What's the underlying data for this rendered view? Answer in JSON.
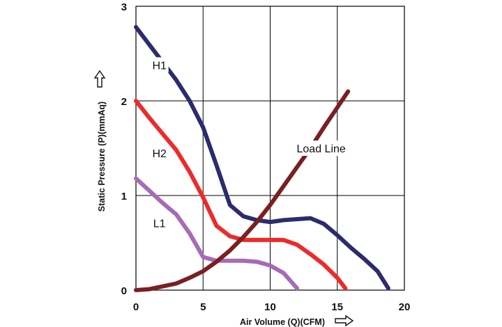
{
  "chart_data": {
    "type": "line",
    "xlabel": "Air Volume (Q)(CFM)",
    "ylabel": "Static Pressure (P)(mmAq)",
    "xlim": [
      0,
      20
    ],
    "ylim": [
      0,
      3
    ],
    "x_ticks": [
      "0",
      "5",
      "10",
      "15",
      "20"
    ],
    "y_ticks": [
      "0",
      "1",
      "2",
      "3"
    ],
    "grid": true,
    "series": [
      {
        "name": "H1",
        "color": "#2b2b6e",
        "x": [
          0,
          1.5,
          3,
          4,
          5,
          6,
          7,
          8,
          9,
          10,
          11,
          12,
          13,
          14,
          15,
          16,
          17,
          18,
          18.8
        ],
        "y": [
          2.78,
          2.5,
          2.22,
          2.0,
          1.72,
          1.32,
          0.9,
          0.78,
          0.74,
          0.72,
          0.74,
          0.75,
          0.76,
          0.7,
          0.58,
          0.45,
          0.33,
          0.2,
          0.02
        ]
      },
      {
        "name": "H2",
        "color": "#ee2a2a",
        "x": [
          0,
          1,
          2,
          3,
          4,
          5,
          6,
          7,
          8,
          9,
          10,
          11,
          12,
          13,
          14,
          15,
          15.6
        ],
        "y": [
          2.0,
          1.82,
          1.65,
          1.48,
          1.25,
          0.98,
          0.68,
          0.57,
          0.53,
          0.53,
          0.53,
          0.53,
          0.48,
          0.38,
          0.27,
          0.13,
          0.02
        ]
      },
      {
        "name": "L1",
        "color": "#a86ab8",
        "x": [
          0,
          1,
          2,
          3,
          4,
          5,
          6,
          7,
          8,
          9,
          10,
          11,
          12
        ],
        "y": [
          1.18,
          1.05,
          0.92,
          0.8,
          0.6,
          0.35,
          0.31,
          0.31,
          0.31,
          0.3,
          0.26,
          0.18,
          0.02
        ]
      },
      {
        "name": "Load Line",
        "color": "#7a1f22",
        "x": [
          0,
          1,
          2,
          3,
          4,
          5,
          6,
          7,
          8,
          9,
          10,
          11,
          12,
          13,
          14,
          15,
          15.8
        ],
        "y": [
          0.0,
          0.01,
          0.04,
          0.07,
          0.13,
          0.2,
          0.3,
          0.42,
          0.56,
          0.72,
          0.9,
          1.1,
          1.3,
          1.5,
          1.72,
          1.93,
          2.1
        ]
      }
    ]
  }
}
